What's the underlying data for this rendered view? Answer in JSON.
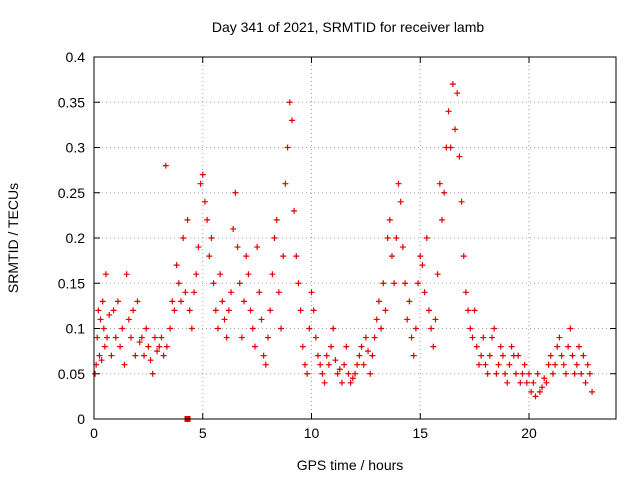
{
  "chart_data": {
    "type": "scatter",
    "title": "Day 341 of 2021, SRMTID for receiver lamb",
    "xlabel": "GPS time / hours",
    "ylabel": "SRMTID / TECUs",
    "xlim": [
      0,
      24
    ],
    "ylim": [
      0,
      0.4
    ],
    "xticks": [
      0,
      5,
      10,
      15,
      20
    ],
    "xtick_labels": [
      "0",
      "5",
      "10",
      "15",
      "20"
    ],
    "yticks": [
      0,
      0.05,
      0.1,
      0.15,
      0.2,
      0.25,
      0.3,
      0.35,
      0.4
    ],
    "ytick_labels": [
      "0",
      "0.05",
      "0.1",
      "0.15",
      "0.2",
      "0.25",
      "0.3",
      "0.35",
      "0.4"
    ],
    "grid": true,
    "marker": "plus",
    "color": "#e00000",
    "series": [
      {
        "name": "SRMTID",
        "points": [
          [
            0.05,
            0.05
          ],
          [
            0.1,
            0.06
          ],
          [
            0.15,
            0.09
          ],
          [
            0.2,
            0.12
          ],
          [
            0.25,
            0.07
          ],
          [
            0.3,
            0.11
          ],
          [
            0.35,
            0.065
          ],
          [
            0.4,
            0.13
          ],
          [
            0.45,
            0.1
          ],
          [
            0.5,
            0.08
          ],
          [
            0.55,
            0.16
          ],
          [
            0.6,
            0.09
          ],
          [
            0.7,
            0.115
          ],
          [
            0.8,
            0.07
          ],
          [
            0.9,
            0.12
          ],
          [
            1.0,
            0.09
          ],
          [
            1.1,
            0.13
          ],
          [
            1.2,
            0.08
          ],
          [
            1.3,
            0.1
          ],
          [
            1.4,
            0.06
          ],
          [
            1.5,
            0.16
          ],
          [
            1.6,
            0.11
          ],
          [
            1.7,
            0.09
          ],
          [
            1.8,
            0.12
          ],
          [
            1.9,
            0.07
          ],
          [
            2.0,
            0.13
          ],
          [
            2.1,
            0.085
          ],
          [
            2.2,
            0.09
          ],
          [
            2.3,
            0.07
          ],
          [
            2.4,
            0.1
          ],
          [
            2.5,
            0.08
          ],
          [
            2.6,
            0.065
          ],
          [
            2.7,
            0.05
          ],
          [
            2.8,
            0.09
          ],
          [
            2.9,
            0.075
          ],
          [
            3.0,
            0.08
          ],
          [
            3.1,
            0.09
          ],
          [
            3.2,
            0.07
          ],
          [
            3.3,
            0.28
          ],
          [
            3.35,
            0.08
          ],
          [
            3.5,
            0.1
          ],
          [
            3.6,
            0.13
          ],
          [
            3.7,
            0.12
          ],
          [
            3.8,
            0.17
          ],
          [
            3.9,
            0.15
          ],
          [
            4.0,
            0.13
          ],
          [
            4.1,
            0.2
          ],
          [
            4.2,
            0.14
          ],
          [
            4.3,
            0.22
          ],
          [
            4.4,
            0.12
          ],
          [
            4.5,
            0.1
          ],
          [
            4.6,
            0.14
          ],
          [
            4.7,
            0.16
          ],
          [
            4.8,
            0.19
          ],
          [
            4.9,
            0.26
          ],
          [
            5.0,
            0.27
          ],
          [
            5.1,
            0.24
          ],
          [
            5.2,
            0.22
          ],
          [
            5.3,
            0.18
          ],
          [
            5.4,
            0.2
          ],
          [
            5.5,
            0.15
          ],
          [
            5.6,
            0.12
          ],
          [
            5.7,
            0.1
          ],
          [
            5.8,
            0.16
          ],
          [
            5.9,
            0.13
          ],
          [
            6.0,
            0.11
          ],
          [
            6.1,
            0.09
          ],
          [
            6.2,
            0.12
          ],
          [
            6.3,
            0.14
          ],
          [
            6.4,
            0.21
          ],
          [
            6.5,
            0.25
          ],
          [
            6.6,
            0.19
          ],
          [
            6.7,
            0.15
          ],
          [
            6.8,
            0.09
          ],
          [
            6.9,
            0.13
          ],
          [
            7.0,
            0.18
          ],
          [
            7.1,
            0.16
          ],
          [
            7.2,
            0.12
          ],
          [
            7.3,
            0.1
          ],
          [
            7.4,
            0.08
          ],
          [
            7.5,
            0.19
          ],
          [
            7.6,
            0.14
          ],
          [
            7.7,
            0.11
          ],
          [
            7.8,
            0.07
          ],
          [
            7.9,
            0.06
          ],
          [
            8.0,
            0.09
          ],
          [
            8.1,
            0.12
          ],
          [
            8.2,
            0.16
          ],
          [
            8.3,
            0.2
          ],
          [
            8.4,
            0.22
          ],
          [
            8.5,
            0.14
          ],
          [
            8.6,
            0.1
          ],
          [
            8.7,
            0.18
          ],
          [
            8.8,
            0.26
          ],
          [
            8.9,
            0.3
          ],
          [
            9.0,
            0.35
          ],
          [
            9.1,
            0.33
          ],
          [
            9.2,
            0.23
          ],
          [
            9.3,
            0.18
          ],
          [
            9.4,
            0.15
          ],
          [
            9.5,
            0.12
          ],
          [
            9.6,
            0.08
          ],
          [
            9.7,
            0.06
          ],
          [
            9.8,
            0.05
          ],
          [
            9.9,
            0.1
          ],
          [
            10.0,
            0.14
          ],
          [
            10.1,
            0.12
          ],
          [
            10.2,
            0.09
          ],
          [
            10.3,
            0.07
          ],
          [
            10.4,
            0.06
          ],
          [
            10.5,
            0.05
          ],
          [
            10.6,
            0.04
          ],
          [
            10.7,
            0.07
          ],
          [
            10.8,
            0.06
          ],
          [
            10.9,
            0.08
          ],
          [
            11.0,
            0.1
          ],
          [
            11.1,
            0.065
          ],
          [
            11.2,
            0.05
          ],
          [
            11.3,
            0.055
          ],
          [
            11.4,
            0.04
          ],
          [
            11.5,
            0.06
          ],
          [
            11.6,
            0.08
          ],
          [
            11.7,
            0.05
          ],
          [
            11.8,
            0.04
          ],
          [
            11.9,
            0.045
          ],
          [
            12.0,
            0.05
          ],
          [
            12.1,
            0.06
          ],
          [
            12.2,
            0.07
          ],
          [
            12.3,
            0.08
          ],
          [
            12.4,
            0.06
          ],
          [
            12.5,
            0.09
          ],
          [
            12.6,
            0.075
          ],
          [
            12.7,
            0.05
          ],
          [
            12.8,
            0.07
          ],
          [
            12.9,
            0.09
          ],
          [
            13.0,
            0.11
          ],
          [
            13.1,
            0.13
          ],
          [
            13.2,
            0.1
          ],
          [
            13.3,
            0.15
          ],
          [
            13.4,
            0.12
          ],
          [
            13.5,
            0.2
          ],
          [
            13.6,
            0.22
          ],
          [
            13.7,
            0.18
          ],
          [
            13.8,
            0.15
          ],
          [
            13.9,
            0.2
          ],
          [
            14.0,
            0.26
          ],
          [
            14.1,
            0.24
          ],
          [
            14.2,
            0.19
          ],
          [
            14.3,
            0.15
          ],
          [
            14.4,
            0.11
          ],
          [
            14.5,
            0.13
          ],
          [
            14.6,
            0.09
          ],
          [
            14.7,
            0.07
          ],
          [
            14.8,
            0.1
          ],
          [
            14.9,
            0.15
          ],
          [
            15.0,
            0.18
          ],
          [
            15.1,
            0.17
          ],
          [
            15.2,
            0.14
          ],
          [
            15.3,
            0.2
          ],
          [
            15.4,
            0.12
          ],
          [
            15.5,
            0.1
          ],
          [
            15.6,
            0.08
          ],
          [
            15.7,
            0.11
          ],
          [
            15.8,
            0.16
          ],
          [
            15.9,
            0.26
          ],
          [
            16.0,
            0.22
          ],
          [
            16.1,
            0.25
          ],
          [
            16.2,
            0.3
          ],
          [
            16.3,
            0.34
          ],
          [
            16.4,
            0.3
          ],
          [
            16.5,
            0.37
          ],
          [
            16.6,
            0.32
          ],
          [
            16.7,
            0.36
          ],
          [
            16.8,
            0.29
          ],
          [
            16.9,
            0.24
          ],
          [
            17.0,
            0.18
          ],
          [
            17.1,
            0.14
          ],
          [
            17.2,
            0.12
          ],
          [
            17.3,
            0.1
          ],
          [
            17.4,
            0.09
          ],
          [
            17.5,
            0.12
          ],
          [
            17.6,
            0.08
          ],
          [
            17.7,
            0.06
          ],
          [
            17.8,
            0.07
          ],
          [
            17.9,
            0.09
          ],
          [
            18.0,
            0.06
          ],
          [
            18.1,
            0.05
          ],
          [
            18.2,
            0.07
          ],
          [
            18.3,
            0.09
          ],
          [
            18.4,
            0.1
          ],
          [
            18.5,
            0.05
          ],
          [
            18.6,
            0.06
          ],
          [
            18.7,
            0.08
          ],
          [
            18.8,
            0.07
          ],
          [
            18.9,
            0.05
          ],
          [
            19.0,
            0.04
          ],
          [
            19.1,
            0.06
          ],
          [
            19.2,
            0.08
          ],
          [
            19.3,
            0.07
          ],
          [
            19.4,
            0.05
          ],
          [
            19.5,
            0.07
          ],
          [
            19.6,
            0.04
          ],
          [
            19.7,
            0.05
          ],
          [
            19.8,
            0.06
          ],
          [
            19.9,
            0.04
          ],
          [
            20.0,
            0.05
          ],
          [
            20.1,
            0.03
          ],
          [
            20.2,
            0.04
          ],
          [
            20.3,
            0.025
          ],
          [
            20.4,
            0.05
          ],
          [
            20.5,
            0.03
          ],
          [
            20.6,
            0.035
          ],
          [
            20.7,
            0.045
          ],
          [
            20.8,
            0.04
          ],
          [
            20.9,
            0.06
          ],
          [
            21.0,
            0.07
          ],
          [
            21.1,
            0.05
          ],
          [
            21.2,
            0.06
          ],
          [
            21.3,
            0.08
          ],
          [
            21.4,
            0.09
          ],
          [
            21.5,
            0.07
          ],
          [
            21.6,
            0.06
          ],
          [
            21.7,
            0.05
          ],
          [
            21.8,
            0.08
          ],
          [
            21.9,
            0.1
          ],
          [
            22.0,
            0.07
          ],
          [
            22.1,
            0.05
          ],
          [
            22.2,
            0.06
          ],
          [
            22.3,
            0.08
          ],
          [
            22.4,
            0.05
          ],
          [
            22.5,
            0.07
          ],
          [
            22.6,
            0.04
          ],
          [
            22.7,
            0.06
          ],
          [
            22.8,
            0.05
          ],
          [
            22.9,
            0.03
          ]
        ]
      }
    ],
    "outlier_square": {
      "x": 4.3,
      "y": 0.0
    }
  }
}
